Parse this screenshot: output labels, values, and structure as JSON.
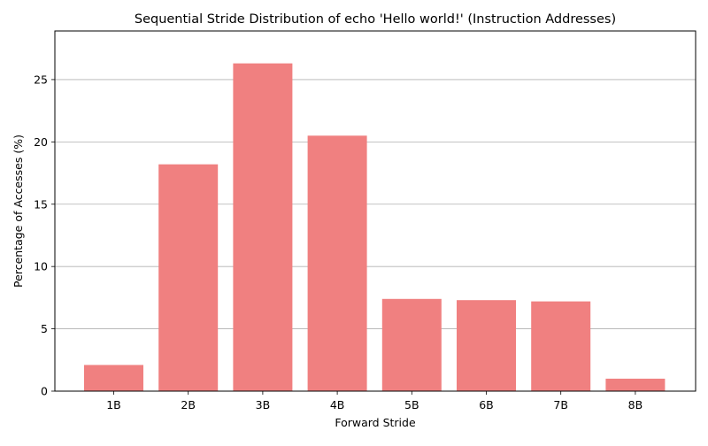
{
  "chart_data": {
    "type": "bar",
    "title": "Sequential Stride Distribution of echo 'Hello world!' (Instruction Addresses)",
    "xlabel": "Forward Stride",
    "ylabel": "Percentage of Accesses (%)",
    "categories": [
      "1B",
      "2B",
      "3B",
      "4B",
      "5B",
      "6B",
      "7B",
      "8B"
    ],
    "values": [
      2.1,
      18.2,
      26.3,
      20.5,
      7.4,
      7.3,
      7.2,
      1.0
    ],
    "ylim": [
      0,
      28.9
    ],
    "yticks": [
      0,
      5,
      10,
      15,
      20,
      25
    ],
    "grid": "y",
    "bar_color": "#f08080"
  }
}
